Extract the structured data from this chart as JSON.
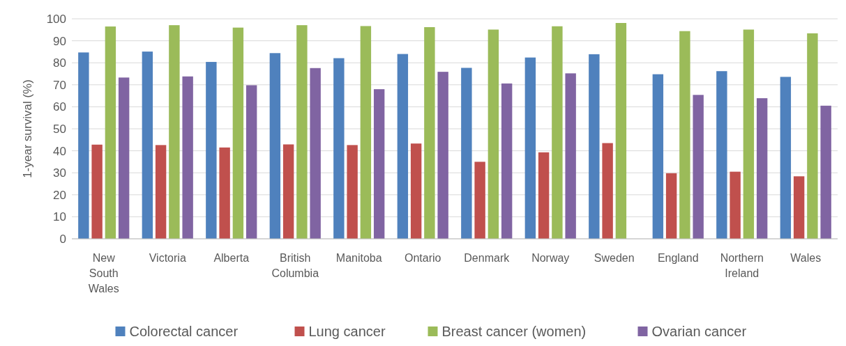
{
  "chart_data": {
    "type": "bar",
    "ylabel": "1-year survival (%)",
    "categories": [
      "New South Wales",
      "Victoria",
      "Alberta",
      "British Columbia",
      "Manitoba",
      "Ontario",
      "Denmark",
      "Norway",
      "Sweden",
      "England",
      "Northern Ireland",
      "Wales"
    ],
    "series": [
      {
        "name": "Colorectal cancer",
        "color": "#4f81bd",
        "values": [
          84.7,
          85.1,
          80.4,
          84.4,
          82.1,
          84.0,
          77.7,
          82.4,
          83.9,
          74.8,
          76.2,
          73.6
        ]
      },
      {
        "name": "Lung cancer",
        "color": "#c0504d",
        "values": [
          42.8,
          42.6,
          41.5,
          42.9,
          42.6,
          43.3,
          35.0,
          39.3,
          43.5,
          29.8,
          30.5,
          28.4
        ]
      },
      {
        "name": "Breast cancer (women)",
        "color": "#9bbb59",
        "values": [
          96.5,
          97.1,
          96.0,
          97.1,
          96.7,
          96.2,
          95.1,
          96.6,
          98.1,
          94.4,
          95.1,
          93.4
        ]
      },
      {
        "name": "Ovarian cancer",
        "color": "#8064a2",
        "values": [
          73.3,
          73.8,
          69.8,
          77.6,
          68.0,
          75.9,
          70.6,
          75.2,
          null,
          65.4,
          63.9,
          60.5
        ]
      }
    ],
    "ylim": [
      0,
      100
    ],
    "yticks": [
      0,
      10,
      20,
      30,
      40,
      50,
      60,
      70,
      80,
      90,
      100
    ],
    "grid": "y",
    "legend": "bottom"
  }
}
